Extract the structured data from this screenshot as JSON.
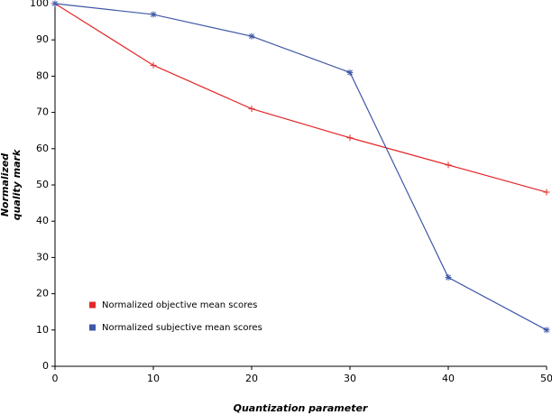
{
  "chart_data": {
    "type": "line",
    "xlabel": "Quantization parameter",
    "ylabel": [
      "Normalized",
      "quality mark"
    ],
    "x": [
      0,
      10,
      20,
      30,
      40,
      50
    ],
    "series": [
      {
        "name": "Normalized objective mean scores",
        "color": "#e3282b",
        "marker": "+",
        "values": [
          100,
          83,
          71,
          63,
          55.5,
          48
        ]
      },
      {
        "name": "Normalized subjective mean scores",
        "color": "#3f58a6",
        "marker": "*",
        "values": [
          100,
          97,
          91,
          81,
          24.5,
          10
        ]
      }
    ],
    "xlim": [
      0,
      50
    ],
    "xticks": [
      0,
      10,
      20,
      30,
      40,
      50
    ],
    "ylim": [
      0,
      100
    ],
    "yticks": [
      0,
      10,
      20,
      30,
      40,
      50,
      60,
      70,
      80,
      90,
      100
    ],
    "grid": false,
    "legend": "lower left"
  }
}
